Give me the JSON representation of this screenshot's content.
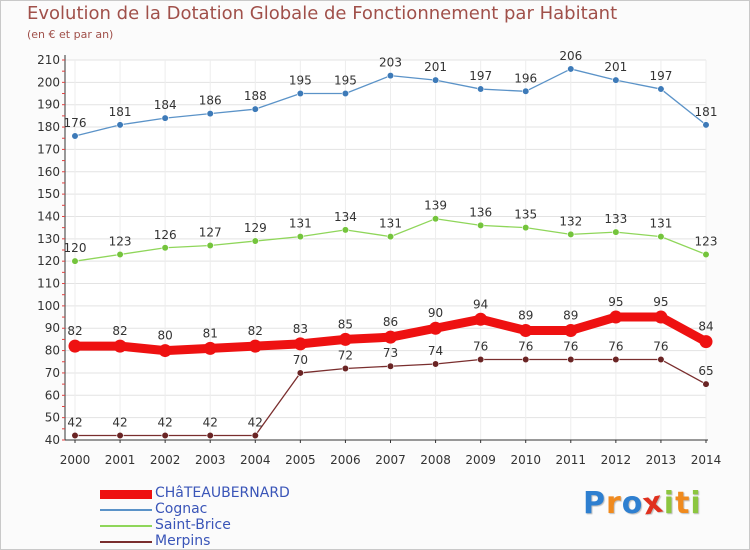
{
  "title": "Evolution de la Dotation Globale de Fonctionnement par Habitant",
  "subtitle": "(en € et par an)",
  "logo": {
    "text": "Proxiti",
    "letters": [
      "P",
      "r",
      "o",
      "x",
      "i",
      "t",
      "i"
    ],
    "colors": [
      "#2e7fd0",
      "#f08a1e",
      "#2e7fd0",
      "#e0301e",
      "#8cc63f",
      "#f08a1e",
      "#8cc63f"
    ]
  },
  "chart_data": {
    "type": "line",
    "title": "Evolution de la Dotation Globale de Fonctionnement par Habitant",
    "subtitle": "(en € et par an)",
    "xlabel": "",
    "ylabel": "",
    "x": [
      "2000",
      "2001",
      "2002",
      "2003",
      "2004",
      "2005",
      "2006",
      "2007",
      "2008",
      "2009",
      "2010",
      "2011",
      "2012",
      "2013",
      "2014"
    ],
    "ylim": [
      40,
      210
    ],
    "yticks": [
      40,
      50,
      60,
      70,
      80,
      90,
      100,
      110,
      120,
      130,
      140,
      150,
      160,
      170,
      180,
      190,
      200,
      210
    ],
    "grid": true,
    "legend_position": "bottom-left",
    "series": [
      {
        "name": "Cognac",
        "color": "#5b93c8",
        "marker": "#3d7ab8",
        "emphasis": false,
        "values": [
          176,
          181,
          184,
          186,
          188,
          195,
          195,
          203,
          201,
          197,
          196,
          206,
          201,
          197,
          181
        ]
      },
      {
        "name": "Saint-Brice",
        "color": "#8fd65a",
        "marker": "#74c43c",
        "emphasis": false,
        "values": [
          120,
          123,
          126,
          127,
          129,
          131,
          134,
          131,
          139,
          136,
          135,
          132,
          133,
          131,
          123
        ]
      },
      {
        "name": "CHâTEAUBERNARD",
        "color": "#ee1111",
        "marker": "#ee1111",
        "emphasis": true,
        "values": [
          82,
          82,
          80,
          81,
          82,
          83,
          85,
          86,
          90,
          94,
          89,
          89,
          95,
          95,
          84
        ]
      },
      {
        "name": "Merpins",
        "color": "#7a2e2e",
        "marker": "#6a2424",
        "emphasis": false,
        "values": [
          42,
          42,
          42,
          42,
          42,
          70,
          72,
          73,
          74,
          76,
          76,
          76,
          76,
          76,
          65
        ]
      }
    ],
    "legend_order": [
      "CHâTEAUBERNARD",
      "Cognac",
      "Saint-Brice",
      "Merpins"
    ]
  }
}
